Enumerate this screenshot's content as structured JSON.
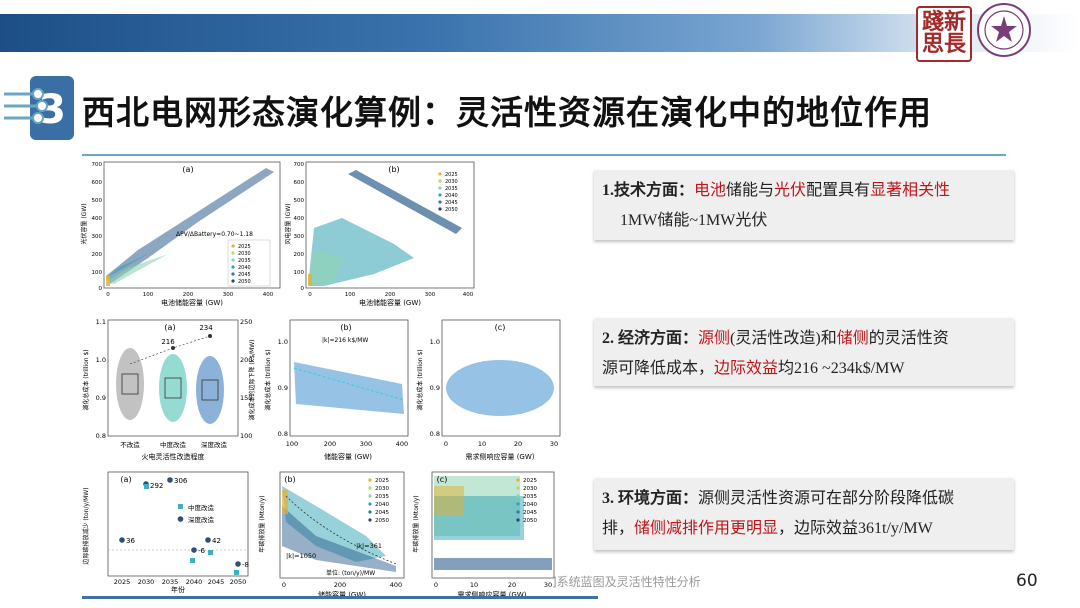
{
  "header": {
    "seal_text": "踐新\n思長",
    "title": "西北电网形态演化算例：灵活性资源在演化中的地位作用"
  },
  "figures": {
    "a_top": {
      "panel": "(a)",
      "ylabel": "光伏容量 (GW)",
      "xlabel": "电池储能容量 (GW)",
      "annotation": "ΔPV/ΔBattery=0.70~1.18",
      "yticks": [
        "700",
        "600",
        "500",
        "400",
        "300",
        "200",
        "100",
        "0"
      ],
      "xticks": [
        "0",
        "100",
        "200",
        "300",
        "400"
      ],
      "legend": [
        "2025",
        "2030",
        "2035",
        "2040",
        "2045",
        "2050"
      ]
    },
    "b_top": {
      "panel": "(b)",
      "ylabel": "风电容量 (GW)",
      "xlabel": "电池储能容量 (GW)",
      "yticks": [
        "700",
        "600",
        "500",
        "400",
        "300",
        "200",
        "100",
        "0"
      ],
      "xticks": [
        "0",
        "100",
        "200",
        "300",
        "400"
      ],
      "legend": [
        "2025",
        "2030",
        "2035",
        "2040",
        "2045",
        "2050"
      ]
    },
    "a_mid": {
      "panel": "(a)",
      "ylabel": "演化总成本 (trillion $)",
      "ylabel2": "演化成本的边际下降 (k$/MW)",
      "xlabel": "火电灵活性改造程度",
      "categories": [
        "不改造",
        "中度改造",
        "深度改造"
      ],
      "yticks": [
        "1.1",
        "1.0",
        "0.9",
        "0.8"
      ],
      "y2ticks": [
        "250",
        "200",
        "150",
        "100"
      ],
      "marks": [
        "216",
        "234"
      ]
    },
    "b_mid": {
      "panel": "(b)",
      "annotation": "|k|=216 k$/MW",
      "ylabel": "演化总成本 (trillion $)",
      "xlabel": "储能容量 (GW)",
      "yticks": [
        "1.0",
        "0.9",
        "0.8"
      ],
      "xticks": [
        "100",
        "200",
        "300",
        "400"
      ]
    },
    "c_mid": {
      "panel": "(c)",
      "ylabel": "演化总成本 (trillion $)",
      "xlabel": "需求侧响应容量 (GW)",
      "yticks": [
        "1.0",
        "0.9",
        "0.8"
      ],
      "xticks": [
        "0",
        "10",
        "20",
        "30"
      ]
    },
    "a_bot": {
      "panel": "(a)",
      "ylabel": "边际碳排放减少 (ton/y/MW)",
      "xlabel": "年份",
      "xticks": [
        "2025",
        "2030",
        "2035",
        "2040",
        "2045",
        "2050"
      ],
      "legend": [
        "中度改造",
        "深度改造"
      ],
      "labels": [
        "36",
        "292",
        "306",
        "-6",
        "42",
        "-8"
      ]
    },
    "b_bot": {
      "panel": "(b)",
      "ylabel": "年碳排放量 (Mton/y)",
      "xlabel": "储能容量 (GW)",
      "annotation1": "|k|=1050",
      "annotation2": "|k|=361",
      "unit_note": "单位: (ton/y)/MW",
      "xticks": [
        "0",
        "200",
        "400"
      ],
      "legend": [
        "2025",
        "2030",
        "2035",
        "2040",
        "2045",
        "2050"
      ]
    },
    "c_bot": {
      "panel": "(c)",
      "ylabel": "年碳排放量 (Mton/y)",
      "xlabel": "需求侧响应容量 (GW)",
      "xticks": [
        "0",
        "10",
        "20",
        "30"
      ],
      "legend": [
        "2025",
        "2030",
        "2035",
        "2040",
        "2045",
        "2050"
      ]
    }
  },
  "info": {
    "tech": {
      "prefix": "1.",
      "heading": "技术方面：",
      "part1": "电池",
      "part2": "储能与",
      "part3": "光伏",
      "part4": "配置具有",
      "part5": "显著相关性",
      "line2": "1MW储能~1MW光伏"
    },
    "econ": {
      "heading": "2. 经济方面：",
      "part1": "源侧",
      "part2": "(灵活性改造)和",
      "part3": "储侧",
      "part4": "的灵活性资",
      "line2a": "源可降低成本，",
      "line2b": "边际效益",
      "line2c": "均216  ~234k$/MW"
    },
    "env": {
      "heading": "3. 环境方面：",
      "line1": "源侧灵活性资源可在部分阶段降低碳",
      "line2a": "排，",
      "line2b": "储侧减排作用更明显",
      "line2c": "，边际效益361t/y/MW"
    }
  },
  "footer": {
    "text": "]系统蓝图及灵活性特性分析",
    "page": "60"
  },
  "colors": {
    "accent_blue": "#1d4f86",
    "emphasis_red": "#c0151b",
    "rule": "#6aa5c4"
  }
}
